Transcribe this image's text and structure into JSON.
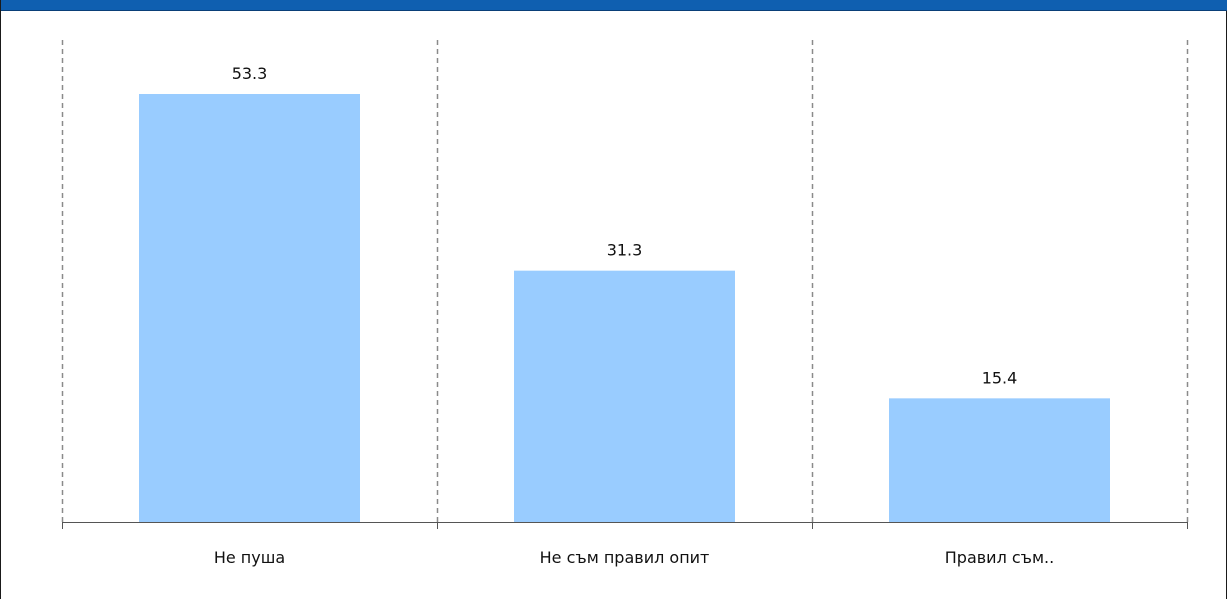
{
  "chart_data": {
    "type": "bar",
    "categories": [
      "Не пуша",
      "Не съм правил опит",
      "Правил съм.."
    ],
    "values": [
      53.3,
      31.3,
      15.4
    ],
    "value_labels": [
      "53.3",
      "31.3",
      "15.4"
    ],
    "title": "",
    "xlabel": "",
    "ylabel": "",
    "ylim": [
      0,
      53.3
    ],
    "grid": "vertical-dashed",
    "legend": "none",
    "bar_color": "#99ccff",
    "header_color": "#0f5fb0"
  }
}
